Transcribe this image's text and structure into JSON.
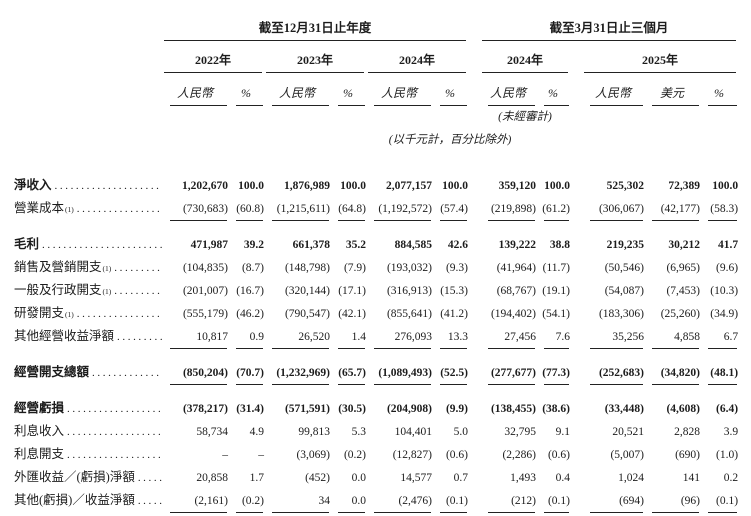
{
  "header": {
    "annual_title": "截至12月31日止年度",
    "quarterly_title": "截至3月31日止三個月",
    "year_2022": "2022年",
    "year_2023": "2023年",
    "year_2024": "2024年",
    "q_year_2024": "2024年",
    "q_year_2025": "2025年",
    "rmb": "人民幣",
    "pct": "%",
    "usd": "美元",
    "unaudited": "(未經審計)",
    "units_note": "(以千元計，百分比除外)"
  },
  "table": {
    "rows": [
      {
        "label": "淨收入",
        "sup": "",
        "bold": true,
        "spacer": false,
        "rule": false,
        "values": [
          "1,202,670",
          "100.0",
          "1,876,989",
          "100.0",
          "2,077,157",
          "100.0",
          "359,120",
          "100.0",
          "525,302",
          "72,389",
          "100.0"
        ]
      },
      {
        "label": "營業成本",
        "sup": "(1)",
        "bold": false,
        "spacer": false,
        "rule": true,
        "values": [
          "(730,683)",
          "(60.8)",
          "(1,215,611)",
          "(64.8)",
          "(1,192,572)",
          "(57.4)",
          "(219,898)",
          "(61.2)",
          "(306,067)",
          "(42,177)",
          "(58.3)"
        ]
      },
      {
        "label": "毛利",
        "sup": "",
        "bold": true,
        "spacer": true,
        "rule": false,
        "values": [
          "471,987",
          "39.2",
          "661,378",
          "35.2",
          "884,585",
          "42.6",
          "139,222",
          "38.8",
          "219,235",
          "30,212",
          "41.7"
        ]
      },
      {
        "label": "銷售及營銷開支",
        "sup": "(1)",
        "bold": false,
        "spacer": false,
        "rule": false,
        "values": [
          "(104,835)",
          "(8.7)",
          "(148,798)",
          "(7.9)",
          "(193,032)",
          "(9.3)",
          "(41,964)",
          "(11.7)",
          "(50,546)",
          "(6,965)",
          "(9.6)"
        ]
      },
      {
        "label": "一般及行政開支",
        "sup": "(1)",
        "bold": false,
        "spacer": false,
        "rule": false,
        "values": [
          "(201,007)",
          "(16.7)",
          "(320,144)",
          "(17.1)",
          "(316,913)",
          "(15.3)",
          "(68,767)",
          "(19.1)",
          "(54,087)",
          "(7,453)",
          "(10.3)"
        ]
      },
      {
        "label": "研發開支",
        "sup": "(1)",
        "bold": false,
        "spacer": false,
        "rule": false,
        "values": [
          "(555,179)",
          "(46.2)",
          "(790,547)",
          "(42.1)",
          "(855,641)",
          "(41.2)",
          "(194,402)",
          "(54.1)",
          "(183,306)",
          "(25,260)",
          "(34.9)"
        ]
      },
      {
        "label": "其他經營收益淨額",
        "sup": "",
        "bold": false,
        "spacer": false,
        "rule": true,
        "values": [
          "10,817",
          "0.9",
          "26,520",
          "1.4",
          "276,093",
          "13.3",
          "27,456",
          "7.6",
          "35,256",
          "4,858",
          "6.7"
        ]
      },
      {
        "label": "經營開支總額",
        "sup": "",
        "bold": true,
        "spacer": true,
        "rule": true,
        "values": [
          "(850,204)",
          "(70.7)",
          "(1,232,969)",
          "(65.7)",
          "(1,089,493)",
          "(52.5)",
          "(277,677)",
          "(77.3)",
          "(252,683)",
          "(34,820)",
          "(48.1)"
        ]
      },
      {
        "label": "經營虧損",
        "sup": "",
        "bold": true,
        "spacer": true,
        "rule": false,
        "values": [
          "(378,217)",
          "(31.4)",
          "(571,591)",
          "(30.5)",
          "(204,908)",
          "(9.9)",
          "(138,455)",
          "(38.6)",
          "(33,448)",
          "(4,608)",
          "(6.4)"
        ]
      },
      {
        "label": "利息收入",
        "sup": "",
        "bold": false,
        "spacer": false,
        "rule": false,
        "values": [
          "58,734",
          "4.9",
          "99,813",
          "5.3",
          "104,401",
          "5.0",
          "32,795",
          "9.1",
          "20,521",
          "2,828",
          "3.9"
        ]
      },
      {
        "label": "利息開支",
        "sup": "",
        "bold": false,
        "spacer": false,
        "rule": false,
        "values": [
          "–",
          "–",
          "(3,069)",
          "(0.2)",
          "(12,827)",
          "(0.6)",
          "(2,286)",
          "(0.6)",
          "(5,007)",
          "(690)",
          "(1.0)"
        ]
      },
      {
        "label": "外匯收益／(虧損)淨額",
        "sup": "",
        "bold": false,
        "spacer": false,
        "rule": false,
        "values": [
          "20,858",
          "1.7",
          "(452)",
          "0.0",
          "14,577",
          "0.7",
          "1,493",
          "0.4",
          "1,024",
          "141",
          "0.2"
        ]
      },
      {
        "label": "其他(虧損)／收益淨額",
        "sup": "",
        "bold": false,
        "spacer": false,
        "rule": true,
        "values": [
          "(2,161)",
          "(0.2)",
          "34",
          "0.0",
          "(2,476)",
          "(0.1)",
          "(212)",
          "(0.1)",
          "(694)",
          "(96)",
          "(0.1)"
        ]
      }
    ]
  }
}
